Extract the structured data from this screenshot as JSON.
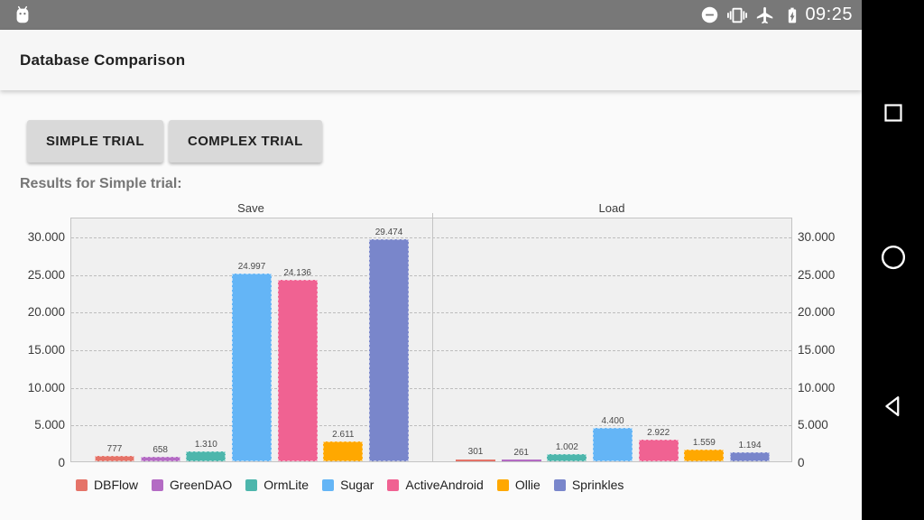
{
  "status_bar": {
    "time": "09:25",
    "icons": [
      "android-notification-icon",
      "do-not-disturb-icon",
      "vibrate-icon",
      "airplane-mode-icon",
      "battery-charging-icon"
    ],
    "bg_color": "#787878"
  },
  "nav_bar": {
    "icons": [
      "recents-icon",
      "home-icon",
      "back-icon"
    ],
    "bg_color": "#000000"
  },
  "app_bar": {
    "title": "Database Comparison"
  },
  "toolbar": {
    "simple_trial_label": "SIMPLE TRIAL",
    "complex_trial_label": "COMPLEX TRIAL"
  },
  "results_label": "Results for Simple trial:",
  "chart_data": {
    "type": "bar",
    "title": "",
    "categories": [
      "Save",
      "Load"
    ],
    "series": [
      {
        "name": "DBFlow",
        "color": "#E57368",
        "values": [
          777,
          301
        ],
        "labels": [
          "777",
          "301"
        ]
      },
      {
        "name": "GreenDAO",
        "color": "#B46BC4",
        "values": [
          658,
          261
        ],
        "labels": [
          "658",
          "261"
        ]
      },
      {
        "name": "OrmLite",
        "color": "#4DB6AC",
        "values": [
          1310,
          1002
        ],
        "labels": [
          "1.310",
          "1.002"
        ]
      },
      {
        "name": "Sugar",
        "color": "#64B5F6",
        "values": [
          24997,
          4400
        ],
        "labels": [
          "24.997",
          "4.400"
        ]
      },
      {
        "name": "ActiveAndroid",
        "color": "#F06292",
        "values": [
          24136,
          2922
        ],
        "labels": [
          "24.136",
          "2.922"
        ]
      },
      {
        "name": "Ollie",
        "color": "#FFA800",
        "values": [
          2611,
          1559
        ],
        "labels": [
          "2.611",
          "1.559"
        ]
      },
      {
        "name": "Sprinkles",
        "color": "#7986CB",
        "values": [
          29474,
          1194
        ],
        "labels": [
          "29.474",
          "1.194"
        ]
      }
    ],
    "xlabel": "",
    "ylabel": "",
    "ylim": [
      0,
      32500
    ],
    "y_ticks": [
      0,
      5000,
      10000,
      15000,
      20000,
      25000,
      30000
    ],
    "y_tick_labels": [
      "0",
      "5.000",
      "10.000",
      "15.000",
      "20.000",
      "25.000",
      "30.000"
    ],
    "grid": true,
    "legend_position": "bottom"
  }
}
